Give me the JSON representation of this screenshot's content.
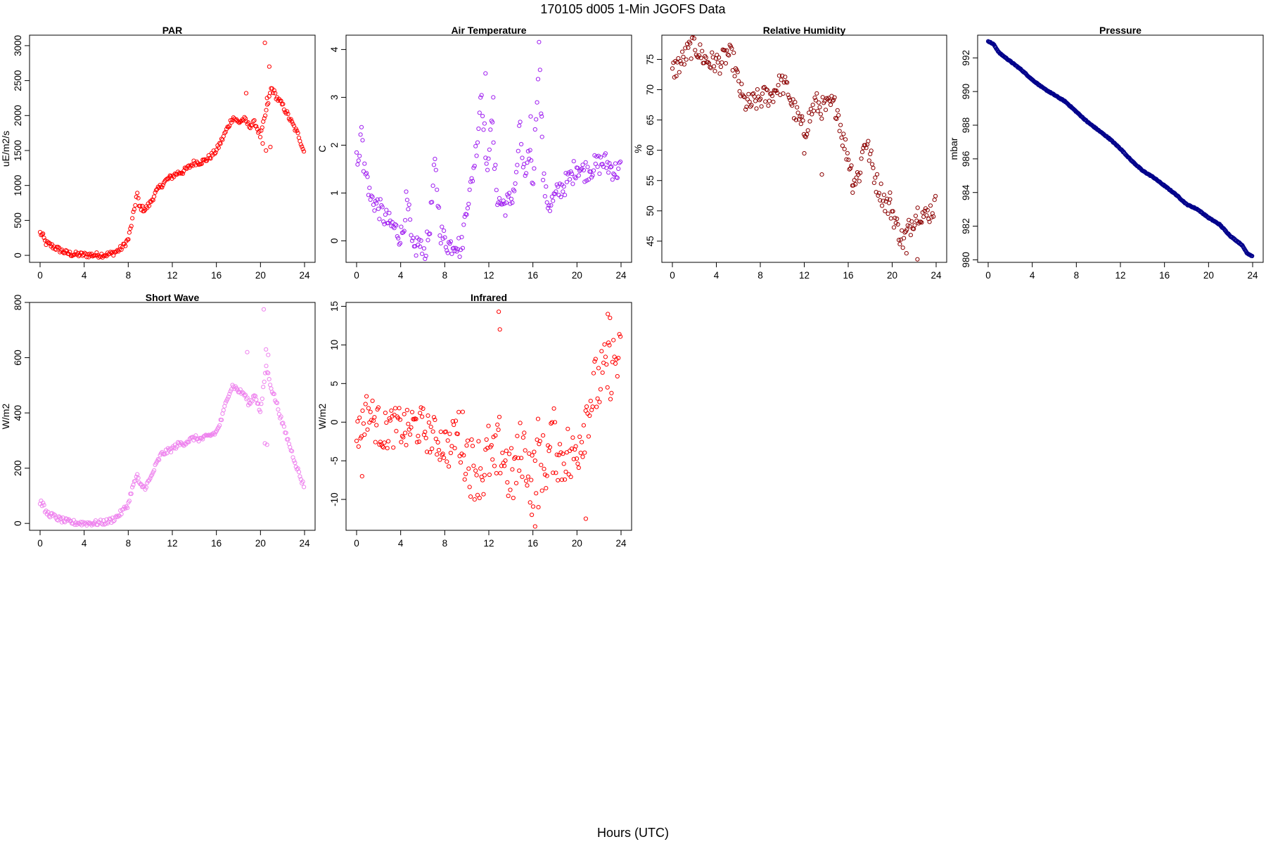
{
  "figure": {
    "title": "170105   d005   1-Min  JGOFS Data",
    "xlabel": "Hours (UTC)"
  },
  "chart_data": [
    {
      "type": "scatter",
      "title": "PAR",
      "ylabel": "uE/m2/s",
      "color": "#ff0000",
      "xlim": [
        0,
        24
      ],
      "ylim": [
        -100,
        3150
      ],
      "xticks": [
        0,
        4,
        8,
        12,
        16,
        20,
        24
      ],
      "yticks": [
        0,
        500,
        1000,
        1500,
        2000,
        2500,
        3000
      ],
      "x": [
        0,
        0.25,
        0.5,
        1,
        1.5,
        2,
        2.5,
        3,
        4,
        5,
        6,
        6.5,
        7,
        7.5,
        8,
        8.3,
        8.6,
        8.8,
        9,
        9.5,
        10,
        10.5,
        11,
        11.5,
        12,
        12.5,
        13,
        13.5,
        14,
        14.5,
        15,
        15.5,
        16,
        16.5,
        17,
        17.5,
        18,
        18.5,
        19,
        19.5,
        20,
        20.5,
        21,
        21.5,
        22,
        22.5,
        23,
        23.5,
        24
      ],
      "y": [
        320,
        280,
        180,
        140,
        100,
        60,
        30,
        15,
        8,
        5,
        10,
        25,
        60,
        120,
        230,
        450,
        700,
        900,
        700,
        650,
        750,
        900,
        1000,
        1080,
        1130,
        1180,
        1200,
        1260,
        1330,
        1330,
        1360,
        1420,
        1500,
        1650,
        1820,
        1980,
        1900,
        1950,
        1850,
        1900,
        1700,
        2050,
        2400,
        2250,
        2150,
        2000,
        1850,
        1700,
        1460
      ],
      "outliers": {
        "x": [
          18.7,
          20.4,
          20.6,
          20.8,
          20.2,
          20.5,
          20.9
        ],
        "y": [
          2320,
          3040,
          2250,
          2700,
          1600,
          1500,
          1550
        ]
      }
    },
    {
      "type": "scatter",
      "title": "Air Temperature",
      "ylabel": "C",
      "color": "#a020f0",
      "xlim": [
        0,
        24
      ],
      "ylim": [
        -0.45,
        4.3
      ],
      "xticks": [
        0,
        4,
        8,
        12,
        16,
        20,
        24
      ],
      "yticks": [
        0,
        1,
        2,
        3,
        4
      ],
      "x": [
        0,
        0.3,
        0.5,
        0.6,
        0.8,
        1,
        1.2,
        1.5,
        2,
        2.5,
        3,
        3.5,
        4,
        4.2,
        4.5,
        4.8,
        5,
        5.3,
        5.6,
        6,
        6.3,
        6.6,
        6.9,
        7.1,
        7.3,
        7.6,
        8,
        8.5,
        9,
        9.5,
        10,
        10.3,
        10.6,
        11,
        11.3,
        11.6,
        11.9,
        12.2,
        12.5,
        12.8,
        13,
        13.5,
        14,
        14.5,
        14.8,
        15.1,
        15.4,
        15.7,
        16,
        16.3,
        16.6,
        16.9,
        17.2,
        17.5,
        18,
        18.5,
        19,
        19.5,
        20,
        20.5,
        21,
        21.5,
        22,
        22.5,
        23,
        23.5,
        24
      ],
      "y": [
        1.85,
        1.7,
        2.8,
        1.6,
        1.4,
        1.3,
        0.9,
        0.85,
        0.7,
        0.5,
        0.35,
        0.25,
        0.1,
        0.2,
        0.8,
        0.5,
        -0.15,
        -0.2,
        0.0,
        -0.3,
        -0.15,
        0.2,
        1.0,
        1.6,
        1.1,
        0.2,
        0.0,
        -0.1,
        0.0,
        -0.2,
        0.8,
        1.0,
        1.5,
        2.2,
        3.2,
        2.3,
        1.2,
        2.8,
        1.6,
        0.9,
        0.8,
        0.75,
        0.85,
        1.3,
        2.4,
        1.6,
        1.2,
        2.0,
        1.1,
        2.7,
        4.2,
        1.4,
        0.9,
        0.75,
        0.9,
        1.1,
        1.2,
        1.35,
        1.6,
        1.45,
        1.5,
        1.55,
        1.6,
        1.65,
        1.55,
        1.45,
        1.5
      ],
      "outliers": {
        "x": [
          11.7,
          12.4,
          15.8,
          16.8
        ],
        "y": [
          3.5,
          3.0,
          2.6,
          2.6
        ]
      }
    },
    {
      "type": "scatter",
      "title": "Relative Humidity",
      "ylabel": "%",
      "color": "#8b0000",
      "xlim": [
        0,
        24
      ],
      "ylim": [
        41.5,
        79
      ],
      "xticks": [
        0,
        4,
        8,
        12,
        16,
        20,
        24
      ],
      "yticks": [
        45,
        50,
        55,
        60,
        65,
        70,
        75
      ],
      "x": [
        0,
        0.5,
        1,
        1.5,
        2,
        2.5,
        3,
        3.5,
        4,
        4.5,
        5,
        5.5,
        6,
        6.5,
        7,
        7.5,
        8,
        8.5,
        9,
        9.5,
        10,
        10.5,
        11,
        11.5,
        12,
        12.5,
        13,
        13.5,
        14,
        14.5,
        15,
        15.5,
        16,
        16.5,
        17,
        17.5,
        18,
        18.5,
        19,
        19.5,
        20,
        20.5,
        21,
        21.5,
        22,
        22.5,
        23,
        23.5,
        24
      ],
      "y": [
        73,
        74,
        75,
        76.5,
        77.5,
        76,
        75,
        74.5,
        74.5,
        74.5,
        76,
        75,
        71,
        68,
        67.5,
        68,
        68.5,
        69,
        69,
        70.5,
        71,
        70,
        67,
        65,
        63,
        65.5,
        68,
        67,
        67,
        67.5,
        67,
        62,
        59,
        55,
        56,
        62,
        59,
        55,
        53,
        51,
        50,
        47,
        45,
        47,
        49,
        50,
        49,
        50,
        51
      ],
      "outliers": {
        "x": [
          12,
          13.6,
          16.4,
          19.8,
          21.3,
          22.3
        ],
        "y": [
          59.5,
          56,
          53,
          53,
          43,
          42
        ]
      }
    },
    {
      "type": "line",
      "title": "Pressure",
      "ylabel": "mbar",
      "color": "#00008b",
      "xlim": [
        0,
        24
      ],
      "ylim": [
        979.85,
        993.35
      ],
      "xticks": [
        0,
        4,
        8,
        12,
        16,
        20,
        24
      ],
      "yticks": [
        980,
        982,
        984,
        986,
        988,
        990,
        992
      ],
      "x": [
        0,
        0.5,
        1,
        2,
        3,
        4,
        5,
        6,
        7,
        8,
        9,
        10,
        11,
        12,
        13,
        14,
        15,
        16,
        17,
        18,
        19,
        20,
        21,
        22,
        23,
        23.5,
        24
      ],
      "y": [
        993.0,
        992.8,
        992.3,
        991.8,
        991.3,
        990.7,
        990.2,
        989.8,
        989.4,
        988.8,
        988.2,
        987.7,
        987.2,
        986.6,
        985.9,
        985.3,
        984.9,
        984.4,
        983.9,
        983.3,
        983.0,
        982.5,
        982.1,
        981.4,
        980.9,
        980.4,
        980.2
      ]
    },
    {
      "type": "scatter",
      "title": "Short Wave",
      "ylabel": "W/m2",
      "color": "#ee82ee",
      "xlim": [
        0,
        24
      ],
      "ylim": [
        -25,
        800
      ],
      "xticks": [
        0,
        4,
        8,
        12,
        16,
        20,
        24
      ],
      "yticks": [
        0,
        200,
        400,
        600,
        800
      ],
      "x": [
        0,
        0.25,
        0.5,
        1,
        1.5,
        2,
        2.5,
        3,
        4,
        5,
        6,
        6.5,
        7,
        7.5,
        8,
        8.3,
        8.6,
        8.8,
        9,
        9.5,
        10,
        10.5,
        11,
        11.5,
        12,
        12.5,
        13,
        13.5,
        14,
        14.5,
        15,
        15.5,
        16,
        16.5,
        17,
        17.5,
        18,
        18.5,
        19,
        19.5,
        20,
        20.5,
        21,
        21.5,
        22,
        22.5,
        23,
        23.5,
        24
      ],
      "y": [
        78,
        70,
        40,
        30,
        20,
        12,
        6,
        3,
        1,
        1,
        5,
        12,
        25,
        45,
        70,
        120,
        150,
        180,
        140,
        130,
        160,
        210,
        250,
        260,
        270,
        285,
        290,
        300,
        310,
        305,
        310,
        320,
        330,
        380,
        460,
        500,
        480,
        470,
        430,
        470,
        400,
        570,
        490,
        430,
        360,
        300,
        240,
        180,
        128
      ],
      "outliers": {
        "x": [
          18.8,
          20.3,
          20.5,
          20.7,
          20.4,
          20.6
        ],
        "y": [
          620,
          775,
          630,
          610,
          290,
          285
        ]
      }
    },
    {
      "type": "scatter",
      "title": "Infrared",
      "ylabel": "W/m2",
      "color": "#ff0000",
      "xlim": [
        0,
        24
      ],
      "ylim": [
        -14,
        15.5
      ],
      "xticks": [
        0,
        4,
        8,
        12,
        16,
        20,
        24
      ],
      "yticks": [
        -10,
        -5,
        0,
        5,
        10,
        15
      ],
      "x": [
        0,
        0.3,
        0.6,
        1,
        1.3,
        1.6,
        2,
        2.5,
        3,
        3.5,
        4,
        4.5,
        5,
        5.5,
        6,
        6.5,
        7,
        7.5,
        8,
        8.5,
        9,
        9.5,
        10,
        10.5,
        11,
        11.5,
        12,
        12.5,
        13,
        13.5,
        14,
        14.5,
        15,
        15.5,
        16,
        16.5,
        17,
        17.5,
        18,
        18.5,
        19,
        19.5,
        20,
        20.5,
        21,
        21.5,
        22,
        22.5,
        23,
        23.5,
        24
      ],
      "y": [
        -0.5,
        -1.5,
        0.5,
        1.5,
        1.0,
        0.2,
        -0.5,
        -1.5,
        -0.5,
        -0.8,
        -0.5,
        -1.2,
        -0.4,
        -0.5,
        -0.6,
        -1.5,
        -1.8,
        -2.5,
        -2.8,
        -3.5,
        -1.0,
        -2.0,
        -4.0,
        -6.0,
        -5.5,
        -6.5,
        -4.0,
        -6.0,
        -3.0,
        -5.0,
        -7.5,
        -6.0,
        -3.0,
        -5.0,
        -8.0,
        -3.0,
        -6.0,
        -4.0,
        -2.0,
        -5.0,
        -3.5,
        -5.5,
        -3.0,
        -1.0,
        2.0,
        4.0,
        5.0,
        6.0,
        7.0,
        8.0,
        7.5
      ],
      "outliers": {
        "x": [
          0.5,
          12.9,
          13.0,
          15.9,
          16.2,
          16.5,
          20.8,
          22.8,
          23.0
        ],
        "y": [
          -7.0,
          14.3,
          12.0,
          -12.0,
          -13.5,
          -11.0,
          -12.5,
          14.0,
          13.5
        ]
      }
    }
  ]
}
